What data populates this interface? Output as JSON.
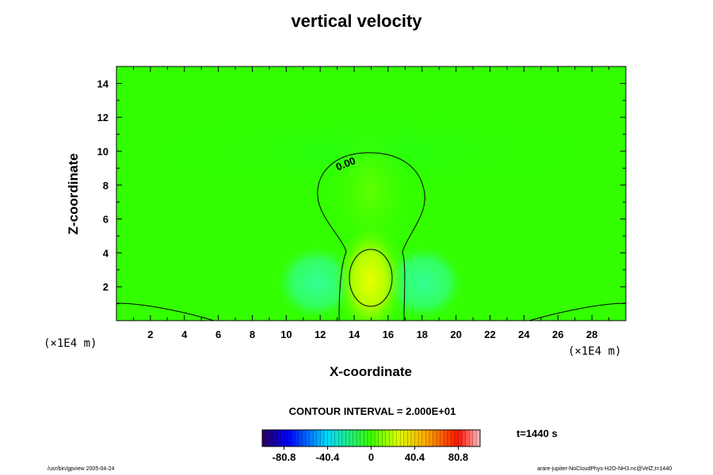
{
  "chart_data": {
    "type": "contour",
    "title": "vertical velocity",
    "xlabel": "X-coordinate",
    "ylabel": "Z-coordinate",
    "x_unit": "(×1E4 m)",
    "y_unit": "(×1E4 m)",
    "xlim": [
      0,
      30
    ],
    "ylim": [
      0,
      15
    ],
    "x_ticks": [
      2,
      4,
      6,
      8,
      10,
      12,
      14,
      16,
      18,
      20,
      22,
      24,
      26,
      28
    ],
    "y_ticks": [
      2,
      4,
      6,
      8,
      10,
      12,
      14
    ],
    "contour_interval": "CONTOUR INTERVAL = 2.000E+01",
    "contour_label": "0.00",
    "colorbar": {
      "range": [
        -101,
        101
      ],
      "tick_labels": [
        "-80.8",
        "-40.4",
        "0",
        "40.4",
        "80.8"
      ],
      "tick_values": [
        -80.8,
        -40.4,
        0,
        40.4,
        80.8
      ]
    },
    "features": {
      "updraft_center": [
        15,
        2.5
      ],
      "updraft_peak": 24,
      "downdraft_centers": [
        [
          12,
          2.2
        ],
        [
          18,
          2.2
        ]
      ],
      "downdraft_min": -10
    }
  },
  "annotations": {
    "time": "t=1440 s",
    "footer_left": "/usr/bin/gpview 2005-04-24",
    "footer_right": "arare-jupiter-NoCloudPhys-H2O-NH3.nc@VelZ,t=1440"
  }
}
